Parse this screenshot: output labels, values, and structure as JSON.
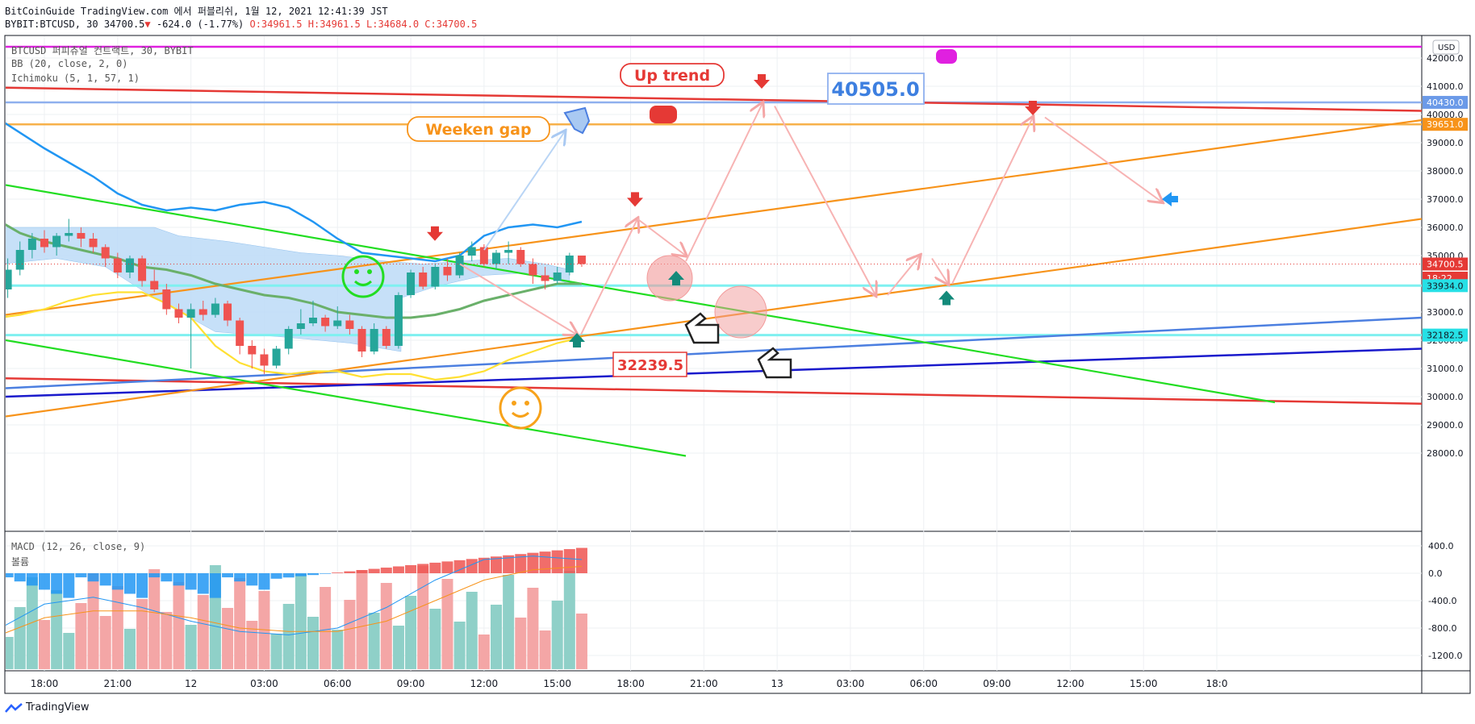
{
  "header": {
    "line1": "BitCoinGuide TradingView.com 에서 퍼블리쉬, 1월 12, 2021 12:41:39 JST",
    "symbol": "BYBIT:BTCUSD, 30",
    "last": "34700.5",
    "change": "-624.0 (-1.77%)",
    "open": "O:34961.5",
    "high": "H:34961.5",
    "low": "L:34684.0",
    "close": "C:34700.5"
  },
  "indicators": {
    "main": "BTCUSD 퍼피츄얼 컨트랙트, 30, BYBIT",
    "bb": "BB (20, close, 2, 0)",
    "ichimoku": "Ichimoku (5, 1, 57, 1)",
    "macd": "MACD (12, 26, close, 9)",
    "volume": "볼륨"
  },
  "footer": {
    "brand": "TradingView",
    "logo_icon": "tradingview-logo-icon"
  },
  "chart_data": {
    "type": "candlestick",
    "currency": "USD",
    "y_ticks": [
      42000,
      41000,
      40000,
      39000,
      38000,
      37000,
      36000,
      35000,
      33000,
      32000,
      31000,
      30000,
      29000,
      28000
    ],
    "ylim": [
      27900,
      43000
    ],
    "x_tick_labels": [
      "18:00",
      "21:00",
      "12",
      "03:00",
      "06:00",
      "09:00",
      "12:00",
      "15:00",
      "18:00",
      "21:00",
      "13",
      "03:00",
      "06:00",
      "09:00",
      "12:00",
      "15:00",
      "18:0"
    ],
    "x_tick_hours": [
      18,
      21,
      24,
      27,
      30,
      33,
      36,
      39,
      42,
      45,
      48,
      51,
      54,
      57,
      60,
      63,
      66
    ],
    "price_labels": [
      {
        "value": 40430.0,
        "text": "40430.0",
        "color": "#6b9ae8"
      },
      {
        "value": 39651.0,
        "text": "39651.0",
        "color": "#f7931a"
      },
      {
        "value": 34700.5,
        "text": "34700.5",
        "color": "#e53935"
      },
      {
        "value": 34200,
        "text": "18:22",
        "color": "#e53935"
      },
      {
        "value": 33934.0,
        "text": "33934.0",
        "color": "#26e0e6"
      },
      {
        "value": 32182.5,
        "text": "32182.5",
        "color": "#26e0e6"
      }
    ],
    "annotations": [
      {
        "text": "Up trend",
        "color": "#e53935"
      },
      {
        "text": "Weeken gap",
        "color": "#f7931a"
      },
      {
        "text": "40505.0",
        "color": "#3d7fe0"
      },
      {
        "text": "32239.5",
        "color": "#e53935"
      }
    ],
    "candles": [
      {
        "h": 16.5,
        "o": 33800,
        "c": 34500,
        "hi": 34900,
        "lo": 33500
      },
      {
        "h": 17.0,
        "o": 34500,
        "c": 35200,
        "hi": 35500,
        "lo": 34300
      },
      {
        "h": 17.5,
        "o": 35200,
        "c": 35600,
        "hi": 35800,
        "lo": 34900
      },
      {
        "h": 18.0,
        "o": 35600,
        "c": 35300,
        "hi": 35900,
        "lo": 35100
      },
      {
        "h": 18.5,
        "o": 35300,
        "c": 35700,
        "hi": 35800,
        "lo": 35000
      },
      {
        "h": 19.0,
        "o": 35700,
        "c": 35800,
        "hi": 36300,
        "lo": 35500
      },
      {
        "h": 19.5,
        "o": 35800,
        "c": 35600,
        "hi": 36000,
        "lo": 35300
      },
      {
        "h": 20.0,
        "o": 35600,
        "c": 35300,
        "hi": 35800,
        "lo": 35100
      },
      {
        "h": 20.5,
        "o": 35300,
        "c": 34900,
        "hi": 35400,
        "lo": 34600
      },
      {
        "h": 21.0,
        "o": 34900,
        "c": 34400,
        "hi": 35100,
        "lo": 34200
      },
      {
        "h": 21.5,
        "o": 34400,
        "c": 34900,
        "hi": 35000,
        "lo": 34200
      },
      {
        "h": 22.0,
        "o": 34900,
        "c": 34100,
        "hi": 35000,
        "lo": 33900
      },
      {
        "h": 22.5,
        "o": 34100,
        "c": 33800,
        "hi": 34500,
        "lo": 33700
      },
      {
        "h": 23.0,
        "o": 33800,
        "c": 33100,
        "hi": 34000,
        "lo": 32900
      },
      {
        "h": 23.5,
        "o": 33100,
        "c": 32800,
        "hi": 33300,
        "lo": 32600
      },
      {
        "h": 24.0,
        "o": 32800,
        "c": 33100,
        "hi": 33300,
        "lo": 31000
      },
      {
        "h": 24.5,
        "o": 33100,
        "c": 32900,
        "hi": 33400,
        "lo": 32700
      },
      {
        "h": 25.0,
        "o": 32900,
        "c": 33300,
        "hi": 33500,
        "lo": 32800
      },
      {
        "h": 25.5,
        "o": 33300,
        "c": 32700,
        "hi": 33400,
        "lo": 32500
      },
      {
        "h": 26.0,
        "o": 32700,
        "c": 31800,
        "hi": 32800,
        "lo": 31500
      },
      {
        "h": 26.5,
        "o": 31800,
        "c": 31500,
        "hi": 32000,
        "lo": 31000
      },
      {
        "h": 27.0,
        "o": 31500,
        "c": 31100,
        "hi": 31700,
        "lo": 30800
      },
      {
        "h": 27.5,
        "o": 31100,
        "c": 31700,
        "hi": 31800,
        "lo": 31000
      },
      {
        "h": 28.0,
        "o": 31700,
        "c": 32400,
        "hi": 32500,
        "lo": 31500
      },
      {
        "h": 28.5,
        "o": 32400,
        "c": 32600,
        "hi": 33100,
        "lo": 32200
      },
      {
        "h": 29.0,
        "o": 32600,
        "c": 32800,
        "hi": 33400,
        "lo": 32500
      },
      {
        "h": 29.5,
        "o": 32800,
        "c": 32500,
        "hi": 32900,
        "lo": 32300
      },
      {
        "h": 30.0,
        "o": 32500,
        "c": 32700,
        "hi": 33200,
        "lo": 32400
      },
      {
        "h": 30.5,
        "o": 32700,
        "c": 32400,
        "hi": 32900,
        "lo": 32200
      },
      {
        "h": 31.0,
        "o": 32400,
        "c": 31600,
        "hi": 32500,
        "lo": 31400
      },
      {
        "h": 31.5,
        "o": 31600,
        "c": 32400,
        "hi": 32600,
        "lo": 31500
      },
      {
        "h": 32.0,
        "o": 32400,
        "c": 31800,
        "hi": 32500,
        "lo": 31700
      },
      {
        "h": 32.5,
        "o": 31800,
        "c": 33600,
        "hi": 33700,
        "lo": 31700
      },
      {
        "h": 33.0,
        "o": 33600,
        "c": 34400,
        "hi": 34500,
        "lo": 33500
      },
      {
        "h": 33.5,
        "o": 34400,
        "c": 33900,
        "hi": 34600,
        "lo": 33800
      },
      {
        "h": 34.0,
        "o": 33900,
        "c": 34600,
        "hi": 34700,
        "lo": 33800
      },
      {
        "h": 34.5,
        "o": 34600,
        "c": 34300,
        "hi": 34900,
        "lo": 34100
      },
      {
        "h": 35.0,
        "o": 34300,
        "c": 35000,
        "hi": 35100,
        "lo": 34200
      },
      {
        "h": 35.5,
        "o": 35000,
        "c": 35300,
        "hi": 35500,
        "lo": 34800
      },
      {
        "h": 36.0,
        "o": 35300,
        "c": 34700,
        "hi": 35400,
        "lo": 34600
      },
      {
        "h": 36.5,
        "o": 34700,
        "c": 35100,
        "hi": 35200,
        "lo": 34500
      },
      {
        "h": 37.0,
        "o": 35100,
        "c": 35200,
        "hi": 35500,
        "lo": 34700
      },
      {
        "h": 37.5,
        "o": 35200,
        "c": 34700,
        "hi": 35300,
        "lo": 34600
      },
      {
        "h": 38.0,
        "o": 34700,
        "c": 34300,
        "hi": 34900,
        "lo": 34000
      },
      {
        "h": 38.5,
        "o": 34300,
        "c": 34100,
        "hi": 34600,
        "lo": 33800
      },
      {
        "h": 39.0,
        "o": 34100,
        "c": 34400,
        "hi": 34600,
        "lo": 34000
      },
      {
        "h": 39.5,
        "o": 34400,
        "c": 35000,
        "hi": 35100,
        "lo": 34300
      },
      {
        "h": 40.0,
        "o": 35000,
        "c": 34700,
        "hi": 35000,
        "lo": 34600
      }
    ],
    "macd_y_ticks": [
      400,
      0,
      -400,
      -800,
      -1200
    ],
    "macd_ylim": [
      -1400,
      600
    ]
  }
}
